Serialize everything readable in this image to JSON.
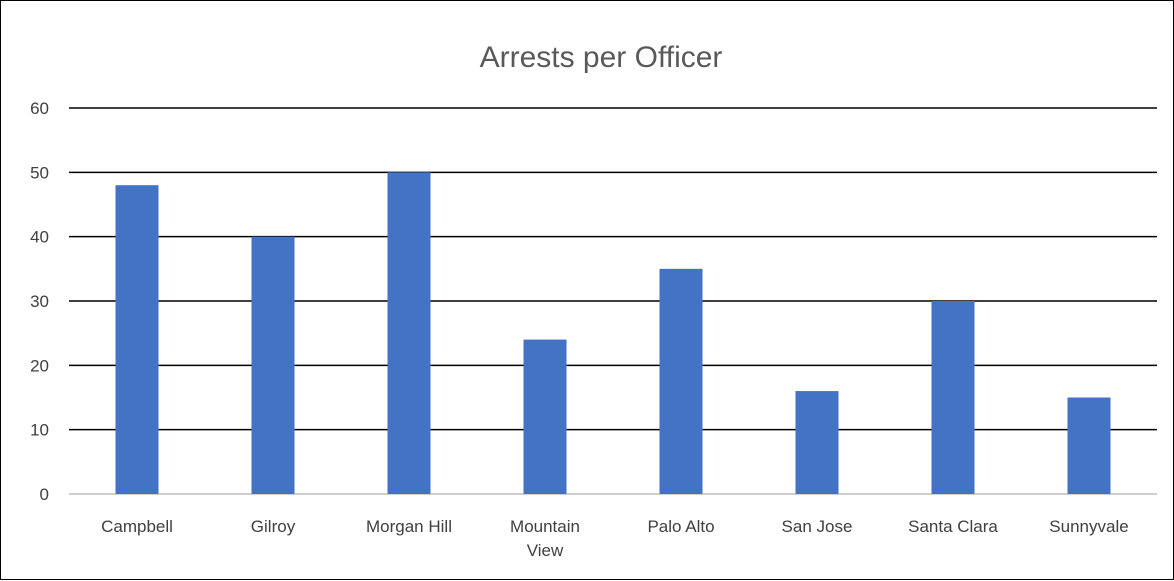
{
  "chart_data": {
    "type": "bar",
    "title": "Arrests per Officer",
    "xlabel": "",
    "ylabel": "",
    "categories": [
      "Campbell",
      "Gilroy",
      "Morgan Hill",
      "Mountain View",
      "Palo Alto",
      "San Jose",
      "Santa Clara",
      "Sunnyvale"
    ],
    "category_lines": [
      [
        "Campbell"
      ],
      [
        "Gilroy"
      ],
      [
        "Morgan Hill"
      ],
      [
        "Mountain",
        "View"
      ],
      [
        "Palo Alto"
      ],
      [
        "San Jose"
      ],
      [
        "Santa Clara"
      ],
      [
        "Sunnyvale"
      ]
    ],
    "values": [
      48,
      40,
      50,
      24,
      35,
      16,
      30,
      15
    ],
    "ylim": [
      0,
      60
    ],
    "yticks": [
      0,
      10,
      20,
      30,
      40,
      50,
      60
    ],
    "grid": true,
    "legend": "none",
    "bar_color": "#4472C4",
    "gridline_color": "#000000"
  }
}
